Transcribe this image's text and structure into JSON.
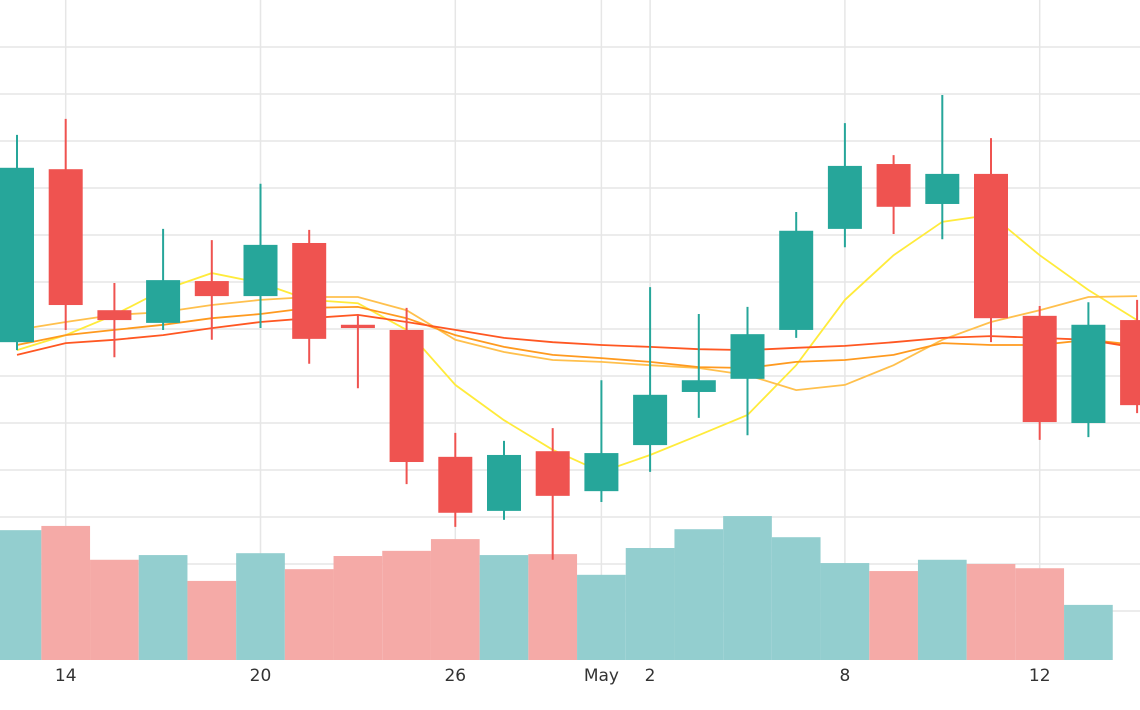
{
  "chart_data": {
    "type": "candlestick",
    "categories": [
      null,
      "14",
      null,
      null,
      null,
      "20",
      null,
      null,
      null,
      "26",
      null,
      null,
      "May",
      "2",
      null,
      null,
      null,
      "8",
      null,
      null,
      null,
      "12",
      null,
      null
    ],
    "open": [
      67.2,
      104.0,
      74.0,
      71.3,
      80.2,
      77.0,
      88.3,
      70.9,
      69.8,
      42.8,
      31.3,
      44.0,
      35.5,
      45.3,
      56.6,
      59.4,
      69.8,
      91.3,
      105.1,
      96.6,
      103.0,
      72.8,
      50.0,
      71.9
    ],
    "high": [
      111.3,
      114.7,
      79.8,
      91.3,
      88.9,
      100.9,
      91.1,
      73.0,
      74.5,
      47.9,
      46.2,
      48.9,
      59.1,
      78.9,
      73.2,
      74.7,
      94.9,
      113.8,
      107.0,
      119.8,
      110.6,
      74.9,
      75.7,
      76.2
    ],
    "low": [
      65.5,
      69.8,
      64.0,
      69.8,
      67.7,
      70.2,
      62.6,
      57.4,
      37.0,
      27.9,
      29.4,
      20.9,
      33.2,
      39.6,
      51.1,
      47.4,
      68.1,
      87.4,
      90.2,
      89.1,
      67.2,
      46.4,
      47.0,
      52.1
    ],
    "close": [
      104.3,
      75.1,
      71.9,
      80.4,
      77.0,
      87.9,
      67.9,
      70.2,
      41.7,
      30.9,
      43.2,
      34.5,
      43.6,
      56.0,
      59.1,
      68.9,
      90.9,
      104.7,
      96.0,
      103.0,
      72.3,
      50.2,
      70.9,
      53.8
    ],
    "volume": [
      27.2,
      28.1,
      20.9,
      21.9,
      16.4,
      22.3,
      18.9,
      21.7,
      22.8,
      25.3,
      21.9,
      22.1,
      17.7,
      23.4,
      27.4,
      30.2,
      25.7,
      20.2,
      18.5,
      20.9,
      20.0,
      19.1,
      11.3,
      null
    ],
    "up_color": "#26a69a",
    "down_color": "#ef5350",
    "volume_up_color": "#93cecf",
    "volume_down_color": "#f5aaa7",
    "lines": [
      {
        "color": "#ffeb3b",
        "values": [
          65.5,
          68.7,
          73.0,
          78.3,
          81.9,
          79.8,
          76.2,
          75.5,
          69.8,
          58.1,
          50.6,
          44.3,
          39.6,
          43.2,
          47.4,
          51.7,
          62.3,
          76.2,
          85.7,
          92.8,
          94.3,
          85.7,
          78.3,
          71.9
        ]
      },
      {
        "color": "#ffc04d",
        "values": [
          69.8,
          71.5,
          73.0,
          73.6,
          75.1,
          76.2,
          76.8,
          76.8,
          74.0,
          67.7,
          65.1,
          63.4,
          63.0,
          62.3,
          61.7,
          60.2,
          57.0,
          58.1,
          62.3,
          67.7,
          71.5,
          74.0,
          76.8,
          77.0
        ]
      },
      {
        "color": "#ff9a1f",
        "values": [
          66.6,
          68.7,
          69.8,
          70.9,
          72.3,
          73.2,
          74.5,
          74.7,
          72.3,
          68.7,
          66.2,
          64.5,
          63.8,
          63.0,
          61.9,
          61.7,
          63.0,
          63.4,
          64.5,
          67.0,
          66.6,
          66.6,
          67.7,
          66.6
        ]
      },
      {
        "color": "#ff5722",
        "values": [
          64.5,
          67.0,
          67.7,
          68.7,
          70.2,
          71.5,
          72.3,
          73.0,
          71.5,
          69.8,
          68.1,
          67.2,
          66.6,
          66.2,
          65.7,
          65.5,
          66.0,
          66.4,
          67.2,
          68.1,
          68.5,
          68.1,
          67.7,
          66.0
        ]
      }
    ],
    "ylim": [
      0,
      140
    ],
    "yticks": [
      10,
      20,
      30,
      40,
      50,
      60,
      70,
      80,
      90,
      100,
      110,
      120,
      130
    ],
    "grid": true
  }
}
